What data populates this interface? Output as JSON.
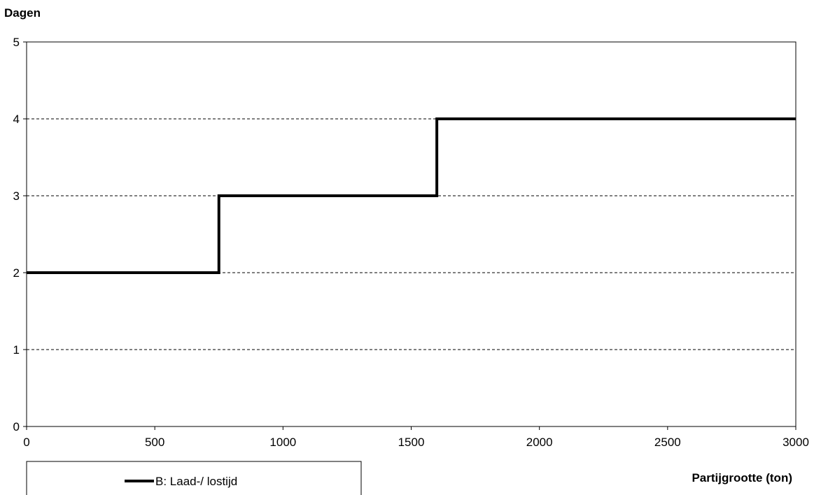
{
  "chart_data": {
    "type": "line",
    "step": true,
    "xlabel": "Partijgrootte (ton)",
    "ylabel": "Dagen",
    "xlim": [
      0,
      3000
    ],
    "ylim": [
      0,
      5
    ],
    "xticks": [
      "0",
      "500",
      "1000",
      "1500",
      "2000",
      "2500",
      "3000"
    ],
    "yticks": [
      "0",
      "1",
      "2",
      "3",
      "4",
      "5"
    ],
    "grid": "horizontal-dashed",
    "legend_position": "bottom-left",
    "series": [
      {
        "name": "B: Laad-/ lostijd",
        "color": "#000000",
        "points": [
          [
            0,
            2
          ],
          [
            750,
            2
          ],
          [
            750,
            3
          ],
          [
            1600,
            3
          ],
          [
            1600,
            4
          ],
          [
            3000,
            4
          ]
        ]
      }
    ]
  }
}
